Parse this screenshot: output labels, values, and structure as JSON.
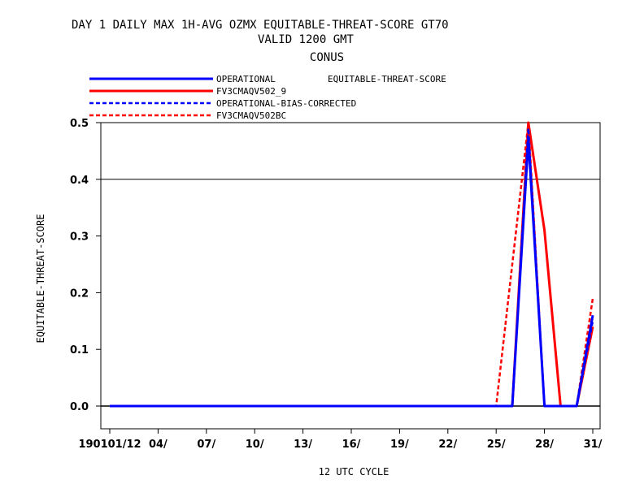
{
  "chart_data": {
    "type": "line",
    "title_lines": [
      "DAY 1 DAILY MAX   1H-AVG OZMX EQUITABLE-THREAT-SCORE GT70",
      "VALID 1200 GMT",
      "CONUS"
    ],
    "legend_label": "EQUITABLE-THREAT-SCORE",
    "xlabel": "12 UTC CYCLE",
    "ylabel": "EQUITABLE-THREAT-SCORE",
    "xlim": [
      0.5,
      31.5
    ],
    "ylim": [
      -0.04,
      0.5
    ],
    "x_ticks": [
      1,
      4,
      7,
      10,
      13,
      16,
      19,
      22,
      25,
      28,
      31
    ],
    "x_tick_labels": [
      "190101/12",
      "04/",
      "07/",
      "10/",
      "13/",
      "16/",
      "19/",
      "22/",
      "25/",
      "28/",
      "31/"
    ],
    "y_ticks": [
      0.0,
      0.1,
      0.2,
      0.3,
      0.4,
      0.5
    ],
    "y_tick_labels": [
      "0.0",
      "0.1",
      "0.2",
      "0.3",
      "0.4",
      "0.5"
    ],
    "reference_line": 0.4,
    "series": [
      {
        "name": "OPERATIONAL",
        "color": "#0000ff",
        "dash": "solid",
        "points": [
          [
            1,
            0
          ],
          [
            2,
            0
          ],
          [
            3,
            0
          ],
          [
            4,
            0
          ],
          [
            5,
            0
          ],
          [
            6,
            0
          ],
          [
            7,
            0
          ],
          [
            8,
            0
          ],
          [
            9,
            0
          ],
          [
            10,
            0
          ],
          [
            11,
            0
          ],
          [
            12,
            0
          ],
          [
            13,
            0
          ],
          [
            14,
            0
          ],
          [
            15,
            0
          ],
          [
            16,
            0
          ],
          [
            17,
            0
          ],
          [
            18,
            0
          ],
          [
            19,
            0
          ],
          [
            20,
            0
          ],
          [
            21,
            0
          ],
          [
            22,
            0
          ],
          [
            23,
            0
          ],
          [
            24,
            0
          ],
          [
            25,
            0
          ],
          [
            26,
            0
          ],
          [
            27,
            0.47
          ],
          [
            28,
            0
          ],
          [
            29,
            0
          ],
          [
            30,
            0
          ],
          [
            31,
            0.16
          ]
        ]
      },
      {
        "name": "FV3CMAQV502_9",
        "color": "#ff0000",
        "dash": "solid",
        "points": [
          [
            1,
            0
          ],
          [
            2,
            0
          ],
          [
            3,
            0
          ],
          [
            4,
            0
          ],
          [
            5,
            0
          ],
          [
            6,
            0
          ],
          [
            7,
            0
          ],
          [
            8,
            0
          ],
          [
            9,
            0
          ],
          [
            10,
            0
          ],
          [
            11,
            0
          ],
          [
            12,
            0
          ],
          [
            13,
            0
          ],
          [
            14,
            0
          ],
          [
            15,
            0
          ],
          [
            16,
            0
          ],
          [
            17,
            0
          ],
          [
            18,
            0
          ],
          [
            19,
            0
          ],
          [
            20,
            0
          ],
          [
            21,
            0
          ],
          [
            22,
            0
          ],
          [
            23,
            0
          ],
          [
            24,
            0
          ],
          [
            25,
            0
          ],
          [
            26,
            0
          ],
          [
            27,
            0.5
          ],
          [
            28,
            0.31
          ],
          [
            29,
            0
          ],
          [
            30,
            0
          ],
          [
            31,
            0.14
          ]
        ]
      },
      {
        "name": "OPERATIONAL-BIAS-CORRECTED",
        "color": "#0000ff",
        "dash": "dashed",
        "points": [
          [
            1,
            0
          ],
          [
            2,
            0
          ],
          [
            3,
            0
          ],
          [
            4,
            0
          ],
          [
            5,
            0
          ],
          [
            6,
            0
          ],
          [
            7,
            0
          ],
          [
            8,
            0
          ],
          [
            9,
            0
          ],
          [
            10,
            0
          ],
          [
            11,
            0
          ],
          [
            12,
            0
          ],
          [
            13,
            0
          ],
          [
            14,
            0
          ],
          [
            15,
            0
          ],
          [
            16,
            0
          ],
          [
            17,
            0
          ],
          [
            18,
            0
          ],
          [
            19,
            0
          ],
          [
            20,
            0
          ],
          [
            21,
            0
          ],
          [
            22,
            0
          ],
          [
            23,
            0
          ],
          [
            24,
            0
          ],
          [
            25,
            0
          ],
          [
            26,
            0
          ],
          [
            27,
            0.49
          ],
          [
            28,
            0
          ],
          [
            29,
            0
          ],
          [
            30,
            0
          ],
          [
            31,
            0.15
          ]
        ]
      },
      {
        "name": "FV3CMAQV502BC",
        "color": "#ff0000",
        "dash": "dashed",
        "points": [
          [
            1,
            0
          ],
          [
            2,
            0
          ],
          [
            3,
            0
          ],
          [
            4,
            0
          ],
          [
            5,
            0
          ],
          [
            6,
            0
          ],
          [
            7,
            0
          ],
          [
            8,
            0
          ],
          [
            9,
            0
          ],
          [
            10,
            0
          ],
          [
            11,
            0
          ],
          [
            12,
            0
          ],
          [
            13,
            0
          ],
          [
            14,
            0
          ],
          [
            15,
            0
          ],
          [
            16,
            0
          ],
          [
            17,
            0
          ],
          [
            18,
            0
          ],
          [
            19,
            0
          ],
          [
            20,
            0
          ],
          [
            21,
            0
          ],
          [
            22,
            0
          ],
          [
            23,
            0
          ],
          [
            24,
            0
          ],
          [
            25,
            0
          ],
          [
            26,
            0.25
          ],
          [
            27,
            0.5
          ],
          [
            28,
            0
          ],
          [
            29,
            0
          ],
          [
            30,
            0
          ],
          [
            31,
            0.19
          ]
        ]
      }
    ]
  }
}
